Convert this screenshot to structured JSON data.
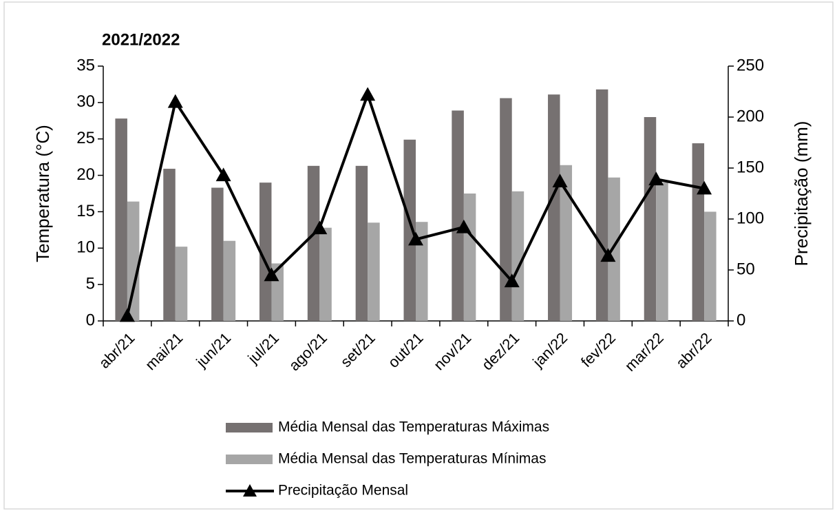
{
  "chart_data": {
    "type": "bar",
    "title": "2021/2022",
    "categories": [
      "abr/21",
      "mai/21",
      "jun/21",
      "jul/21",
      "ago/21",
      "set/21",
      "out/21",
      "nov/21",
      "dez/21",
      "jan/22",
      "fev/22",
      "mar/22",
      "abr/22"
    ],
    "series": [
      {
        "name": "Média Mensal das Temperaturas Máximas",
        "type": "bar",
        "color": "#767171",
        "values": [
          27.8,
          20.9,
          18.3,
          19.0,
          21.3,
          21.3,
          24.9,
          28.9,
          30.6,
          31.1,
          31.8,
          28.0,
          24.4
        ]
      },
      {
        "name": "Média Mensal das Temperaturas Mínimas",
        "type": "bar",
        "color": "#a6a6a6",
        "values": [
          16.4,
          10.2,
          11.0,
          7.9,
          12.8,
          13.5,
          13.6,
          17.5,
          17.8,
          21.4,
          19.7,
          19.0,
          15.0
        ]
      },
      {
        "name": "Precipitação Mensal",
        "type": "line",
        "axis": "y2",
        "color": "#000000",
        "marker": "triangle",
        "values": [
          5,
          215,
          143,
          45,
          91,
          222,
          80,
          92,
          39,
          137,
          64,
          139,
          130
        ]
      }
    ],
    "ylabel": "Temperatura (°C)",
    "y2label": "Precipitação (mm)",
    "ylim": [
      0,
      35
    ],
    "yticks": [
      0,
      5,
      10,
      15,
      20,
      25,
      30,
      35
    ],
    "y2lim": [
      0,
      250
    ],
    "y2ticks": [
      0,
      50,
      100,
      150,
      200,
      250
    ],
    "grid": false,
    "legend": "bottom"
  }
}
